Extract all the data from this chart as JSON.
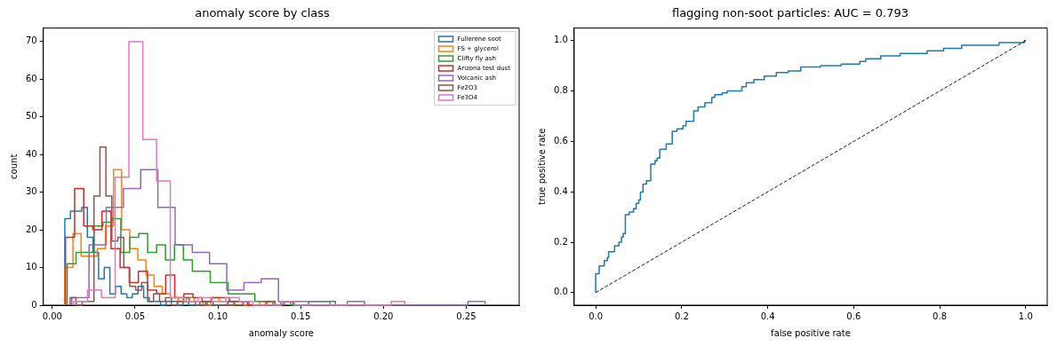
{
  "chart_data": [
    {
      "type": "step",
      "title": "anomaly score by class",
      "xlabel": "anomaly score",
      "ylabel": "count",
      "xlim": [
        -0.0054,
        0.282
      ],
      "ylim": [
        0,
        73.6
      ],
      "xticks": [
        {
          "value": 0,
          "label": "0.00"
        },
        0.05,
        {
          "value": 0.1,
          "label": "0.10"
        },
        0.15,
        {
          "value": 0.2,
          "label": "0.20"
        },
        0.25
      ],
      "yticks": [
        0,
        10,
        20,
        30,
        40,
        50,
        60,
        70
      ],
      "legend": "top right",
      "series": [
        {
          "name": "Fullerene soot",
          "color": "#1f77b4",
          "x": [
            0.0076,
            0.0076,
            0.011,
            0.0144,
            0.0178,
            0.0212,
            0.0246,
            0.028,
            0.0314,
            0.0348,
            0.0382,
            0.0416,
            0.045,
            0.0484,
            0.0518,
            0.0552,
            0.0586,
            0.062,
            0.0654,
            0.0688,
            0.0722,
            0.0756,
            0.079,
            0.0824,
            0.0858,
            0.0892,
            0.0926,
            0.096,
            0.0994,
            0.1028,
            0.1062,
            0.1096
          ],
          "values": [
            0,
            23,
            25,
            25,
            26,
            18,
            14,
            7,
            10,
            3,
            5,
            3,
            2,
            3,
            5,
            2,
            1,
            1,
            0,
            1,
            1,
            0,
            1,
            0,
            0,
            1,
            0,
            0,
            0,
            0,
            1,
            0
          ]
        },
        {
          "name": "FS + glycerol",
          "color": "#ff7f0e",
          "x": [
            0.0076,
            0.0076,
            0.0125,
            0.0174,
            0.0223,
            0.0272,
            0.0321,
            0.037,
            0.0419,
            0.0468,
            0.0517,
            0.0566,
            0.0615,
            0.0664,
            0.0713,
            0.0762,
            0.0811,
            0.086,
            0.0909,
            0.0958,
            0.1007,
            0.1056,
            0.1105,
            0.1154,
            0.1203,
            0.1252,
            0.1301
          ],
          "values": [
            0,
            10,
            19,
            13,
            13,
            15,
            21,
            36,
            20,
            15,
            12,
            8,
            5,
            3,
            2,
            1,
            2,
            1,
            0,
            2,
            1,
            0,
            1,
            0,
            0,
            1,
            0
          ]
        },
        {
          "name": "Clifty fly ash",
          "color": "#2ca02c",
          "x": [
            0.009,
            0.009,
            0.0144,
            0.0198,
            0.0252,
            0.0306,
            0.036,
            0.0414,
            0.0468,
            0.0522,
            0.0576,
            0.063,
            0.0684,
            0.0738,
            0.0792,
            0.0846,
            0.09,
            0.0954,
            0.1008,
            0.1062,
            0.1116,
            0.117,
            0.1224,
            0.1278,
            0.1332,
            0.1386,
            0.144,
            0.1494,
            0.1548,
            0.1602,
            0.1656,
            0.171
          ],
          "values": [
            0,
            11,
            14,
            14,
            21,
            22,
            23,
            14,
            18,
            19,
            14,
            16,
            12,
            16,
            12,
            9,
            9,
            6,
            6,
            3,
            3,
            3,
            1,
            1,
            0,
            1,
            0,
            0,
            1,
            1,
            1,
            0
          ]
        },
        {
          "name": "Arizona test dust",
          "color": "#d62728",
          "x": [
            0.008,
            0.008,
            0.0135,
            0.019,
            0.0245,
            0.03,
            0.0355,
            0.041,
            0.0465,
            0.052,
            0.0575,
            0.063,
            0.0685,
            0.074,
            0.0795,
            0.085,
            0.0905,
            0.096,
            0.1015,
            0.107,
            0.1125,
            0.118,
            0.1235,
            0.129,
            0.1345,
            0.14,
            0.1455
          ],
          "values": [
            0,
            18,
            31,
            21,
            20,
            25,
            15,
            10,
            6,
            9,
            4,
            3,
            8,
            2,
            3,
            2,
            1,
            2,
            2,
            1,
            1,
            0,
            0,
            1,
            0,
            1,
            0
          ]
        },
        {
          "name": "Volcanic ash",
          "color": "#9467bd",
          "x": [
            0.0118,
            0.0118,
            0.0222,
            0.0326,
            0.043,
            0.0534,
            0.0638,
            0.0742,
            0.0846,
            0.095,
            0.1054,
            0.1158,
            0.1262,
            0.1366,
            0.147,
            0.1574,
            0.1678,
            0.1782,
            0.1886,
            0.199,
            0.2094,
            0.2198,
            0.2302,
            0.2406,
            0.251,
            0.2614
          ],
          "values": [
            0,
            2,
            16,
            26,
            31,
            36,
            26,
            16,
            14,
            11,
            4,
            6,
            7,
            1,
            1,
            1,
            0,
            1,
            0,
            0,
            0,
            0,
            0,
            0,
            1,
            0
          ]
        },
        {
          "name": "Fe2O3",
          "color": "#8c564b",
          "x": [
            0.0108,
            0.0108,
            0.0144,
            0.018,
            0.0216,
            0.0252,
            0.0288,
            0.0324,
            0.036,
            0.0396,
            0.0432,
            0.0468,
            0.0504,
            0.054,
            0.0576,
            0.0612,
            0.0648,
            0.0684,
            0.072,
            0.0756,
            0.0792,
            0.0828,
            0.0864,
            0.09,
            0.0936,
            0.0972,
            0.1008,
            0.1044,
            0.108,
            0.1116,
            0.1152,
            0.1188
          ],
          "values": [
            0,
            2,
            0,
            1,
            1,
            29,
            42,
            29,
            17,
            18,
            10,
            5,
            4,
            6,
            1,
            3,
            1,
            2,
            0,
            1,
            2,
            1,
            0,
            0,
            1,
            0,
            0,
            0,
            0,
            0,
            1,
            0
          ]
        },
        {
          "name": "Fe3O4",
          "color": "#e377c2",
          "x": [
            0.013,
            0.013,
            0.0213,
            0.0297,
            0.038,
            0.0463,
            0.0547,
            0.063,
            0.0713,
            0.0797,
            0.088,
            0.0963,
            0.1047,
            0.113,
            0.1213,
            0.1297,
            0.138,
            0.1463,
            0.1547,
            0.163,
            0.1713,
            0.1797,
            0.188,
            0.1963,
            0.2047,
            0.213
          ],
          "values": [
            0,
            1,
            4,
            2,
            34,
            70,
            44,
            33,
            2,
            1,
            2,
            1,
            2,
            1,
            0,
            0,
            1,
            0,
            0,
            0,
            0,
            0,
            0,
            0,
            1,
            0
          ]
        }
      ]
    },
    {
      "type": "step",
      "title": "flagging non-soot particles: AUC = 0.793",
      "xlabel": "false positive rate",
      "ylabel": "true positive rate",
      "xlim": [
        -0.05,
        1.05
      ],
      "ylim": [
        -0.05,
        1.05
      ],
      "xticks": [
        {
          "value": 0,
          "label": "0.0"
        },
        0.2,
        0.4,
        0.6,
        0.8,
        {
          "value": 1,
          "label": "1.0"
        }
      ],
      "yticks": [
        {
          "value": 0,
          "label": "0.0"
        },
        0.2,
        0.4,
        0.6,
        0.8,
        {
          "value": 1,
          "label": "1.0"
        }
      ],
      "series": [
        {
          "color": "#1f77b4",
          "x": [
            0,
            0,
            0.008,
            0.02,
            0.027,
            0.03,
            0.044,
            0.054,
            0.06,
            0.064,
            0.069,
            0.078,
            0.088,
            0.094,
            0.1,
            0.104,
            0.11,
            0.118,
            0.128,
            0.138,
            0.143,
            0.149,
            0.164,
            0.178,
            0.189,
            0.203,
            0.21,
            0.228,
            0.238,
            0.254,
            0.27,
            0.277,
            0.294,
            0.306,
            0.34,
            0.35,
            0.368,
            0.392,
            0.42,
            0.448,
            0.477,
            0.523,
            0.571,
            0.614,
            0.628,
            0.663,
            0.708,
            0.771,
            0.809,
            0.851,
            0.938,
            0.997,
            1
          ],
          "values": [
            0,
            0.075,
            0.106,
            0.127,
            0.139,
            0.162,
            0.186,
            0.2,
            0.22,
            0.234,
            0.309,
            0.32,
            0.333,
            0.354,
            0.367,
            0.399,
            0.431,
            0.444,
            0.51,
            0.524,
            0.534,
            0.569,
            0.59,
            0.64,
            0.65,
            0.662,
            0.68,
            0.721,
            0.737,
            0.754,
            0.775,
            0.785,
            0.792,
            0.8,
            0.817,
            0.833,
            0.845,
            0.859,
            0.873,
            0.88,
            0.895,
            0.901,
            0.907,
            0.917,
            0.928,
            0.939,
            0.949,
            0.96,
            0.969,
            0.982,
            0.992,
            1,
            1
          ]
        },
        {
          "type": "line",
          "color": "#000000",
          "line_style": "dashed",
          "x": [
            0,
            1
          ],
          "values": [
            0,
            1
          ]
        }
      ]
    }
  ]
}
